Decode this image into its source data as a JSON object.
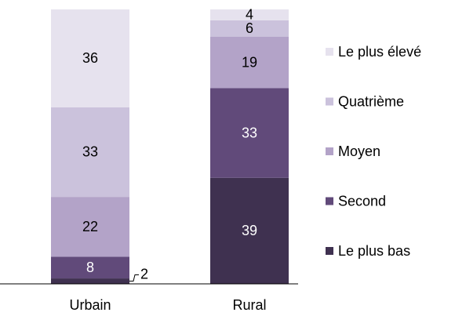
{
  "chart_data": {
    "type": "stacked_bar",
    "categories": [
      "Urbain",
      "Rural"
    ],
    "series": [
      {
        "name": "Le plus bas",
        "color": "#3f3150",
        "values": [
          2,
          39
        ]
      },
      {
        "name": "Second",
        "color": "#614a7a",
        "values": [
          8,
          33
        ]
      },
      {
        "name": "Moyen",
        "color": "#b3a3c8",
        "values": [
          22,
          19
        ]
      },
      {
        "name": "Quatrième",
        "color": "#cbc2dc",
        "values": [
          33,
          6
        ]
      },
      {
        "name": "Le plus élevé",
        "color": "#e6e2ee",
        "values": [
          36,
          4
        ]
      }
    ],
    "ylim": [
      0,
      101
    ],
    "legend": "right"
  }
}
